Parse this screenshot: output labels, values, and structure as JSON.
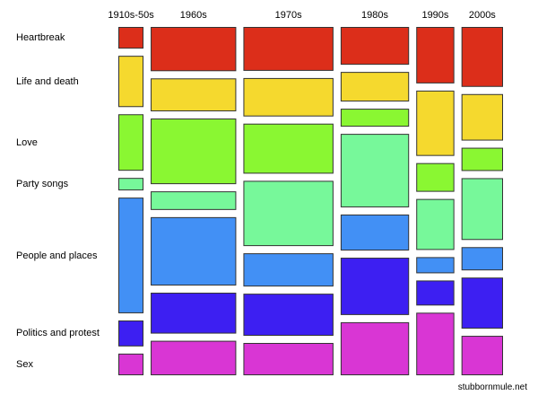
{
  "chart_data": {
    "type": "mosaic",
    "title": "",
    "columns": [
      "1910s-50s",
      "1960s",
      "1970s",
      "1980s",
      "1990s",
      "2000s"
    ],
    "column_share_percent": [
      7.2,
      24.5,
      25.8,
      19.6,
      10.9,
      11.9
    ],
    "rows": [
      "Heartbreak",
      "Life and death",
      "Love",
      "Party songs",
      "People and places",
      "Politics and protest",
      "Sex"
    ],
    "row_colors": [
      "#dc2e1a",
      "#f5d92e",
      "#8af732",
      "#77f89a",
      "#4290f5",
      "#3d1ff2",
      "#d936d4"
    ],
    "percent_within_column": [
      [
        7.1,
        16.8,
        18.5,
        4.1,
        37.9,
        8.5,
        7.1
      ],
      [
        14.5,
        10.8,
        21.5,
        6.1,
        22.4,
        13.4,
        11.3
      ],
      [
        14.4,
        12.6,
        16.4,
        21.4,
        10.9,
        13.8,
        10.6
      ],
      [
        12.4,
        9.7,
        5.9,
        24.1,
        11.8,
        18.8,
        17.4
      ],
      [
        18.5,
        21.4,
        9.4,
        16.7,
        5.3,
        8.2,
        20.5
      ],
      [
        19.6,
        15.2,
        7.6,
        20.2,
        7.6,
        16.7,
        12.9
      ]
    ],
    "legend": "none",
    "grid": false
  },
  "credit": "stubbornmule.net"
}
